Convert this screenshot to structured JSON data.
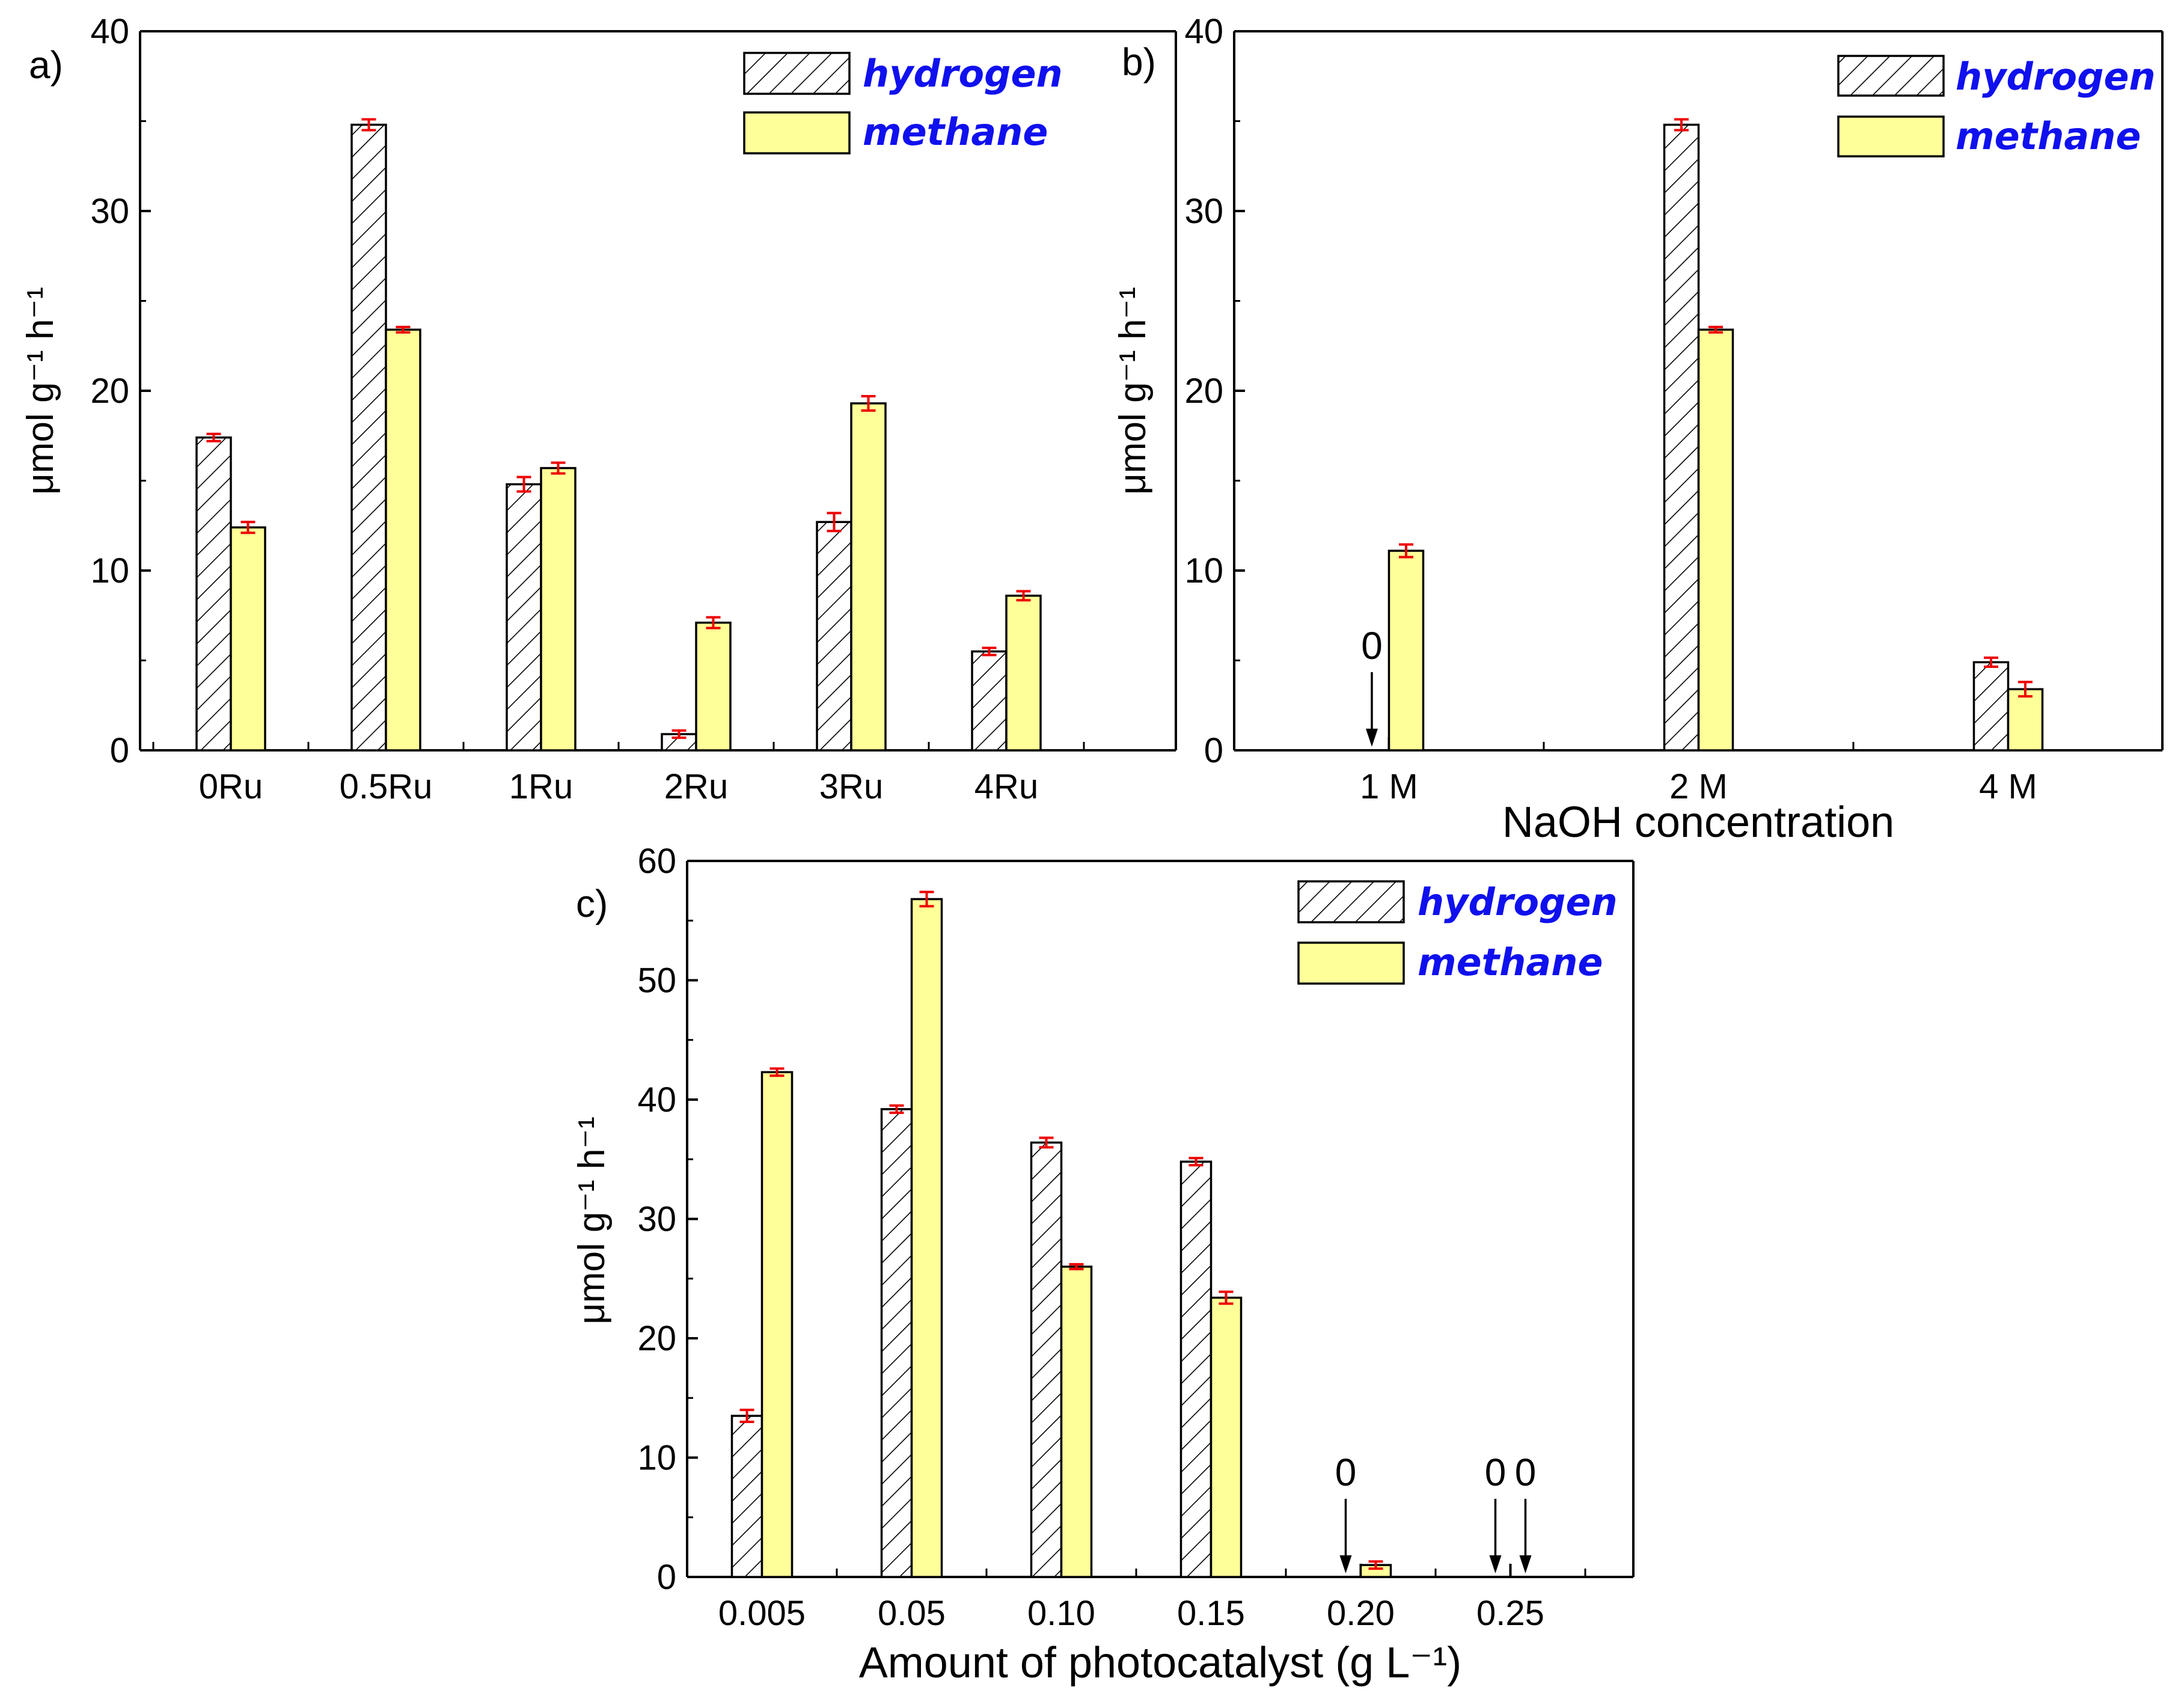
{
  "colors": {
    "methane_fill": "#ffff99",
    "error_bar": "#ee0000",
    "legend_text": "#1010ee",
    "axis": "#000000"
  },
  "chart_data": [
    {
      "id": "a",
      "type": "bar",
      "panel_label": "a)",
      "categories": [
        "0Ru",
        "0.5Ru",
        "1Ru",
        "2Ru",
        "3Ru",
        "4Ru"
      ],
      "series": [
        {
          "name": "hydrogen",
          "values": [
            17.4,
            34.8,
            14.8,
            0.9,
            12.7,
            5.5
          ],
          "errors": [
            0.2,
            0.3,
            0.4,
            0.2,
            0.5,
            0.2
          ]
        },
        {
          "name": "methane",
          "values": [
            12.4,
            23.4,
            15.7,
            7.1,
            19.3,
            8.6
          ],
          "errors": [
            0.3,
            0.15,
            0.3,
            0.3,
            0.4,
            0.25
          ]
        }
      ],
      "xlabel": "",
      "ylabel": "μmol g⁻¹ h⁻¹",
      "ylim": [
        0,
        40
      ],
      "yticks": [
        "0",
        "10",
        "20",
        "30",
        "40"
      ],
      "zero_annotations": [],
      "legend": "top-right"
    },
    {
      "id": "b",
      "type": "bar",
      "panel_label": "b)",
      "categories": [
        "1 M",
        "2 M",
        "4 M"
      ],
      "series": [
        {
          "name": "hydrogen",
          "values": [
            0,
            34.8,
            4.9
          ],
          "errors": [
            0,
            0.3,
            0.25
          ]
        },
        {
          "name": "methane",
          "values": [
            11.1,
            23.4,
            3.4
          ],
          "errors": [
            0.35,
            0.15,
            0.4
          ]
        }
      ],
      "xlabel": "NaOH concentration",
      "ylabel": "μmol g⁻¹ h⁻¹",
      "ylim": [
        0,
        40
      ],
      "yticks": [
        "0",
        "10",
        "20",
        "30",
        "40"
      ],
      "zero_annotations": [
        {
          "category": 0,
          "series": 0,
          "text": "0"
        }
      ],
      "legend": "top-right"
    },
    {
      "id": "c",
      "type": "bar",
      "panel_label": "c)",
      "categories": [
        "0.005",
        "0.05",
        "0.10",
        "0.15",
        "0.20",
        "0.25"
      ],
      "series": [
        {
          "name": "hydrogen",
          "values": [
            13.5,
            39.2,
            36.4,
            34.8,
            0,
            0
          ],
          "errors": [
            0.5,
            0.3,
            0.4,
            0.3,
            0,
            0
          ]
        },
        {
          "name": "methane",
          "values": [
            42.3,
            56.8,
            26.0,
            23.4,
            1.0,
            0
          ],
          "errors": [
            0.3,
            0.6,
            0.2,
            0.5,
            0.3,
            0
          ]
        }
      ],
      "xlabel": "Amount of photocatalyst (g L⁻¹)",
      "ylabel": "μmol g⁻¹ h⁻¹",
      "ylim": [
        0,
        60
      ],
      "yticks": [
        "0",
        "10",
        "20",
        "30",
        "40",
        "50",
        "60"
      ],
      "zero_annotations": [
        {
          "category": 4,
          "series": 0,
          "text": "0"
        },
        {
          "category": 5,
          "series": 0,
          "text": "0"
        },
        {
          "category": 5,
          "series": 1,
          "text": "0"
        }
      ],
      "legend": "top-right"
    }
  ]
}
